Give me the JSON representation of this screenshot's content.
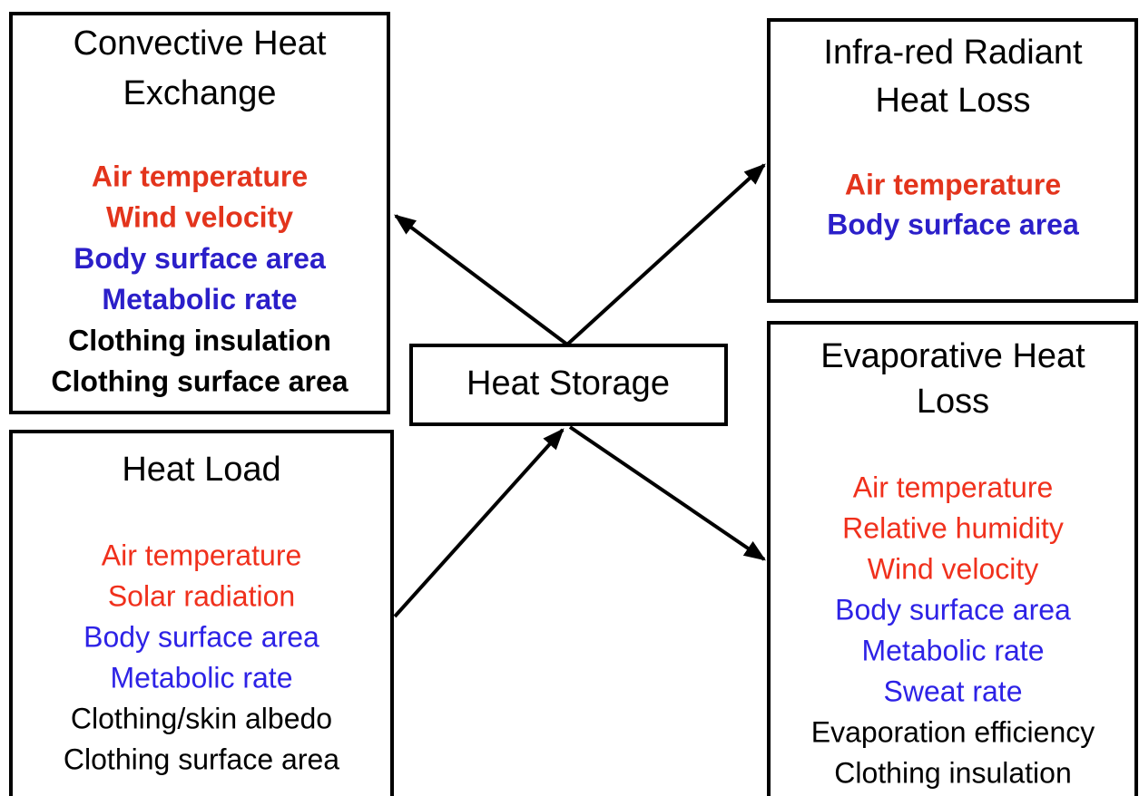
{
  "nodes": [
    {
      "title_lines": [
        "Convective Heat",
        "Exchange"
      ],
      "items": [
        {
          "text": "Air temperature",
          "color": "#e3341c"
        },
        {
          "text": "Wind velocity",
          "color": "#e3341c"
        },
        {
          "text": "Body surface area",
          "color": "#2b1fc9"
        },
        {
          "text": "Metabolic rate",
          "color": "#2b1fc9"
        },
        {
          "text": "Clothing insulation",
          "color": "#000000"
        },
        {
          "text": "Clothing surface area",
          "color": "#000000"
        }
      ]
    },
    {
      "title_lines": [
        "Heat Load"
      ],
      "items": [
        {
          "text": "Air temperature",
          "color": "#f0301c"
        },
        {
          "text": "Solar radiation",
          "color": "#f0301c"
        },
        {
          "text": "Body surface area",
          "color": "#2d22e6"
        },
        {
          "text": "Metabolic rate",
          "color": "#2d22e6"
        },
        {
          "text": "Clothing/skin albedo",
          "color": "#000000"
        },
        {
          "text": "Clothing surface area",
          "color": "#000000"
        }
      ]
    },
    {
      "title_lines": [
        "Heat Storage"
      ],
      "items": []
    },
    {
      "title_lines": [
        "Infra-red Radiant",
        "Heat Loss"
      ],
      "items": [
        {
          "text": "Air temperature",
          "color": "#e3341c"
        },
        {
          "text": "Body surface area",
          "color": "#2b1fc9"
        }
      ]
    },
    {
      "title_lines": [
        "Evaporative Heat",
        "Loss"
      ],
      "items": [
        {
          "text": "Air temperature",
          "color": "#f0301c"
        },
        {
          "text": "Relative humidity",
          "color": "#f0301c"
        },
        {
          "text": "Wind velocity",
          "color": "#f0301c"
        },
        {
          "text": "Body surface area",
          "color": "#2d22e6"
        },
        {
          "text": "Metabolic rate",
          "color": "#2d22e6"
        },
        {
          "text": "Sweat rate",
          "color": "#2d22e6"
        },
        {
          "text": "Evaporation efficiency",
          "color": "#000000"
        },
        {
          "text": "Clothing insulation",
          "color": "#000000"
        }
      ]
    }
  ]
}
